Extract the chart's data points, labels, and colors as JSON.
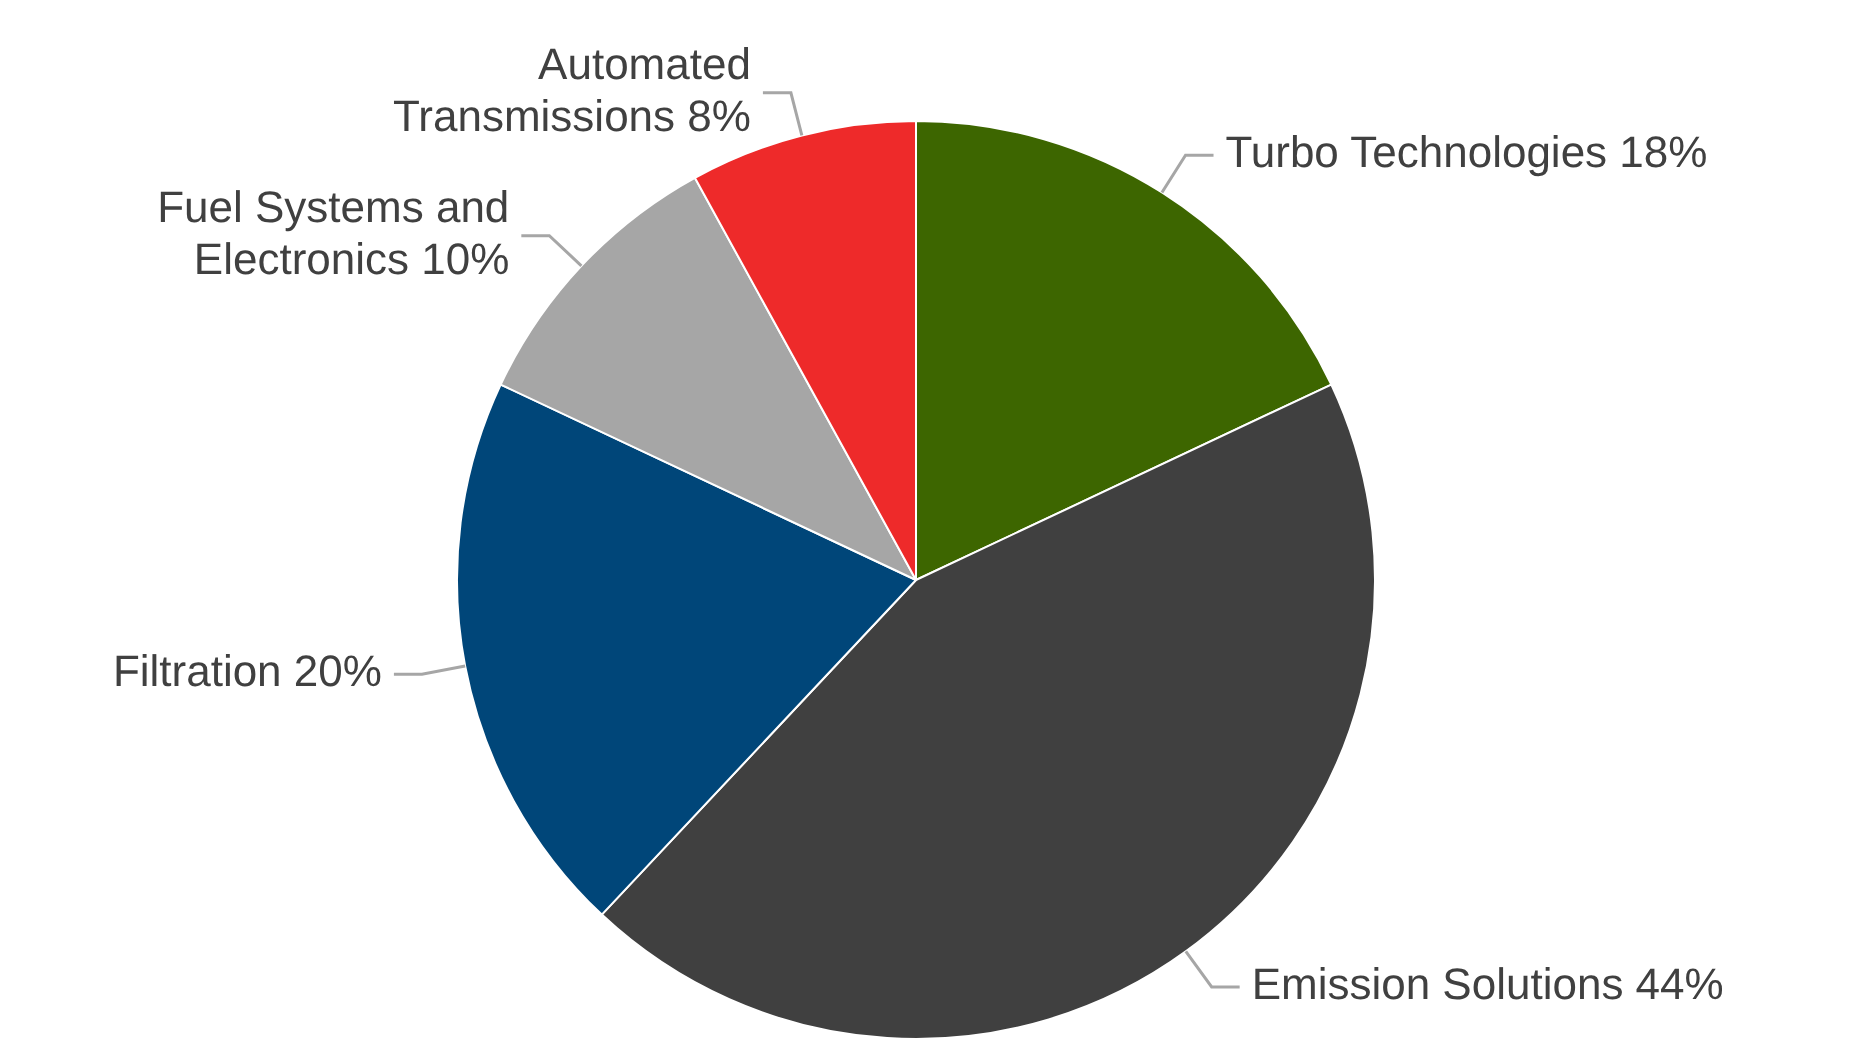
{
  "chart_data": {
    "type": "pie",
    "categories": [
      "Turbo Technologies",
      "Emission Solutions",
      "Filtration",
      "Fuel Systems and Electronics",
      "Automated Transmissions"
    ],
    "values": [
      18,
      44,
      20,
      10,
      8
    ],
    "value_labels": [
      "18%",
      "44%",
      "20%",
      "10%",
      "8%"
    ],
    "colors": [
      "#3d6600",
      "#404040",
      "#004679",
      "#a6a6a6",
      "#ee2a2a"
    ],
    "legend": false
  }
}
